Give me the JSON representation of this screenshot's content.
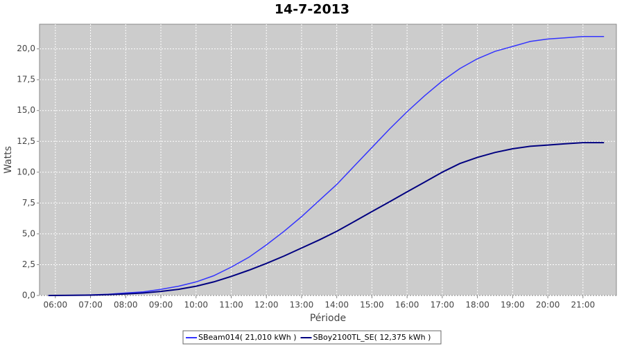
{
  "chart_data": {
    "type": "line",
    "title": "14-7-2013",
    "x_label": "Période",
    "y_label": "Watts",
    "x": [
      5.8,
      6.5,
      7,
      7.5,
      8,
      8.5,
      9,
      9.5,
      10,
      10.5,
      11,
      11.5,
      12,
      12.5,
      13,
      13.5,
      14,
      14.5,
      15,
      15.5,
      16,
      16.5,
      17,
      17.5,
      18,
      18.5,
      19,
      19.5,
      20,
      20.5,
      21,
      21.6
    ],
    "series": [
      {
        "name": "SBeam014( 21,010 kWh )",
        "color": "#3333ff",
        "values": [
          0,
          0.02,
          0.05,
          0.1,
          0.2,
          0.3,
          0.5,
          0.75,
          1.1,
          1.6,
          2.3,
          3.1,
          4.1,
          5.2,
          6.4,
          7.7,
          9.0,
          10.5,
          12.0,
          13.5,
          14.9,
          16.2,
          17.4,
          18.4,
          19.2,
          19.8,
          20.2,
          20.6,
          20.8,
          20.9,
          21.0,
          21.0
        ]
      },
      {
        "name": "SBoy2100TL_SE( 12,375 kWh )",
        "color": "#000080",
        "values": [
          0,
          0.01,
          0.03,
          0.07,
          0.13,
          0.2,
          0.33,
          0.5,
          0.75,
          1.1,
          1.55,
          2.05,
          2.6,
          3.2,
          3.85,
          4.5,
          5.2,
          6.0,
          6.8,
          7.6,
          8.4,
          9.2,
          10.0,
          10.7,
          11.2,
          11.6,
          11.9,
          12.1,
          12.2,
          12.3,
          12.4,
          12.4
        ]
      }
    ],
    "xlim": [
      5.55,
      21.95
    ],
    "xticks": [
      {
        "value": 6,
        "label": "06:00"
      },
      {
        "value": 7,
        "label": "07:00"
      },
      {
        "value": 8,
        "label": "08:00"
      },
      {
        "value": 9,
        "label": "09:00"
      },
      {
        "value": 10,
        "label": "10:00"
      },
      {
        "value": 11,
        "label": "11:00"
      },
      {
        "value": 12,
        "label": "12:00"
      },
      {
        "value": 13,
        "label": "13:00"
      },
      {
        "value": 14,
        "label": "14:00"
      },
      {
        "value": 15,
        "label": "15:00"
      },
      {
        "value": 16,
        "label": "16:00"
      },
      {
        "value": 17,
        "label": "17:00"
      },
      {
        "value": 18,
        "label": "18:00"
      },
      {
        "value": 19,
        "label": "19:00"
      },
      {
        "value": 20,
        "label": "20:00"
      },
      {
        "value": 21,
        "label": "21:00"
      }
    ],
    "ylim": [
      0,
      22
    ],
    "yticks": [
      {
        "value": 0,
        "label": "0,0"
      },
      {
        "value": 2.5,
        "label": "2,5"
      },
      {
        "value": 5,
        "label": "5,0"
      },
      {
        "value": 7.5,
        "label": "7,5"
      },
      {
        "value": 10,
        "label": "10,0"
      },
      {
        "value": 12.5,
        "label": "12,5"
      },
      {
        "value": 15,
        "label": "15,0"
      },
      {
        "value": 17.5,
        "label": "17,5"
      },
      {
        "value": 20,
        "label": "20,0"
      }
    ],
    "grid": true,
    "legend_position": "bottom"
  }
}
